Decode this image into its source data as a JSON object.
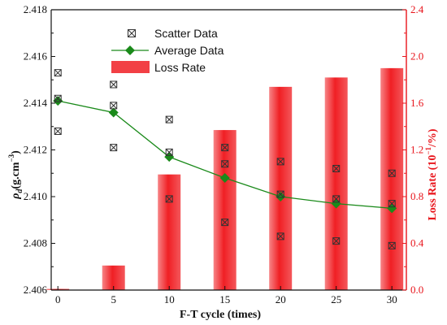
{
  "chart_data": {
    "type": "bar",
    "xlabel": "F-T cycle (times)",
    "ylabel": {
      "symbol": "ρ",
      "subscript": "d",
      "unit_open": "(g.cm",
      "unit_sup": "−3",
      "unit_close": ")"
    },
    "y2label": {
      "prefix": "Loss Rate (10",
      "sup": "−1",
      "suffix": "/%)"
    },
    "x": [
      0,
      5,
      10,
      15,
      20,
      25,
      30
    ],
    "xticks": [
      "0",
      "5",
      "10",
      "15",
      "20",
      "25",
      "30"
    ],
    "xlim": [
      -0.6,
      31.3
    ],
    "ylim": [
      2.406,
      2.418
    ],
    "yticks": [
      "2.406",
      "2.408",
      "2.410",
      "2.412",
      "2.414",
      "2.416",
      "2.418"
    ],
    "y2lim": [
      0.0,
      2.4
    ],
    "y2ticks": [
      "0.0",
      "0.4",
      "0.8",
      "1.2",
      "1.6",
      "2.0",
      "2.4"
    ],
    "series": [
      {
        "name": "Loss Rate",
        "kind": "bar",
        "axis": "right",
        "color": "#f01f24",
        "values": [
          0.01,
          0.21,
          0.99,
          1.37,
          1.74,
          1.82,
          1.9
        ]
      },
      {
        "name": "Scatter Data",
        "kind": "scatter",
        "axis": "left",
        "color": "#333333",
        "points": [
          [
            0,
            2.4153
          ],
          [
            0,
            2.4142
          ],
          [
            0,
            2.4128
          ],
          [
            5,
            2.4148
          ],
          [
            5,
            2.4139
          ],
          [
            5,
            2.4121
          ],
          [
            10,
            2.4133
          ],
          [
            10,
            2.4119
          ],
          [
            10,
            2.4099
          ],
          [
            15,
            2.4121
          ],
          [
            15,
            2.4114
          ],
          [
            15,
            2.4089
          ],
          [
            20,
            2.4115
          ],
          [
            20,
            2.4101
          ],
          [
            20,
            2.4083
          ],
          [
            25,
            2.4112
          ],
          [
            25,
            2.4099
          ],
          [
            25,
            2.4081
          ],
          [
            30,
            2.411
          ],
          [
            30,
            2.4097
          ],
          [
            30,
            2.4079
          ]
        ]
      },
      {
        "name": "Average Data",
        "kind": "line",
        "axis": "left",
        "color": "#1a8a1a",
        "values": [
          2.4141,
          2.4136,
          2.4117,
          2.4108,
          2.41,
          2.4097,
          2.4095
        ]
      }
    ],
    "legend_position": "top-left"
  }
}
